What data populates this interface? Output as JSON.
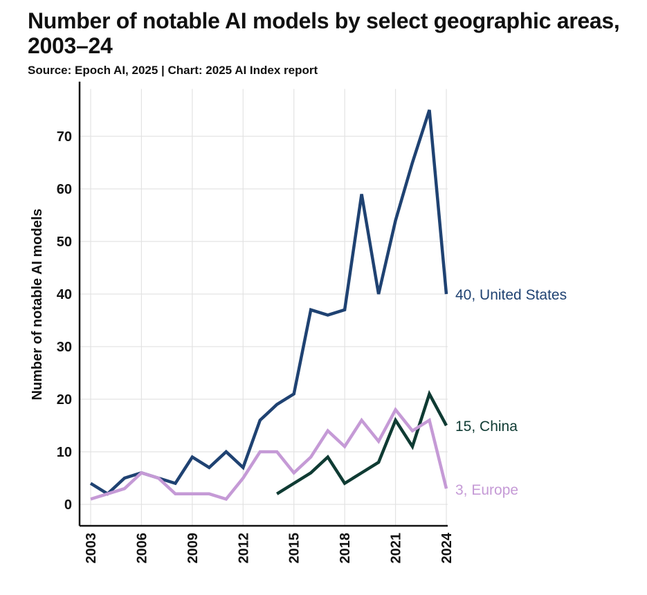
{
  "title": "Number of notable AI models by select geographic areas, 2003–24",
  "subtitle": "Source: Epoch AI, 2025 | Chart: 2025 AI Index report",
  "chart_data": {
    "type": "line",
    "title": "Number of notable AI models by select geographic areas, 2003–24",
    "xlabel": "",
    "ylabel": "Number of notable AI models",
    "xlim": [
      2003,
      2024
    ],
    "ylim": [
      -4,
      79
    ],
    "x_ticks": [
      2003,
      2006,
      2009,
      2012,
      2015,
      2018,
      2021,
      2024
    ],
    "y_ticks": [
      0,
      10,
      20,
      30,
      40,
      50,
      60,
      70
    ],
    "grid": true,
    "legend": "end-labels",
    "series": [
      {
        "name": "United States",
        "end_label": "40, United States",
        "color": "#1f4272",
        "x": [
          2003,
          2004,
          2005,
          2006,
          2007,
          2008,
          2009,
          2010,
          2011,
          2012,
          2013,
          2014,
          2015,
          2016,
          2017,
          2018,
          2019,
          2020,
          2021,
          2022,
          2023,
          2024
        ],
        "values": [
          4,
          2,
          5,
          6,
          5,
          4,
          9,
          7,
          10,
          7,
          16,
          19,
          21,
          37,
          36,
          37,
          59,
          40,
          54,
          65,
          75,
          40
        ]
      },
      {
        "name": "China",
        "end_label": "15, China",
        "color": "#0f3b33",
        "x": [
          2014,
          2015,
          2016,
          2017,
          2018,
          2019,
          2020,
          2021,
          2022,
          2023,
          2024
        ],
        "values": [
          2,
          4,
          6,
          9,
          4,
          6,
          8,
          16,
          11,
          21,
          15
        ]
      },
      {
        "name": "Europe",
        "end_label": "3, Europe",
        "color": "#c59ad6",
        "x": [
          2003,
          2004,
          2005,
          2006,
          2007,
          2008,
          2009,
          2010,
          2011,
          2012,
          2013,
          2014,
          2015,
          2016,
          2017,
          2018,
          2019,
          2020,
          2021,
          2022,
          2023,
          2024
        ],
        "values": [
          1,
          2,
          3,
          6,
          5,
          2,
          2,
          2,
          1,
          5,
          10,
          10,
          6,
          9,
          14,
          11,
          16,
          12,
          18,
          14,
          16,
          3
        ]
      }
    ]
  }
}
